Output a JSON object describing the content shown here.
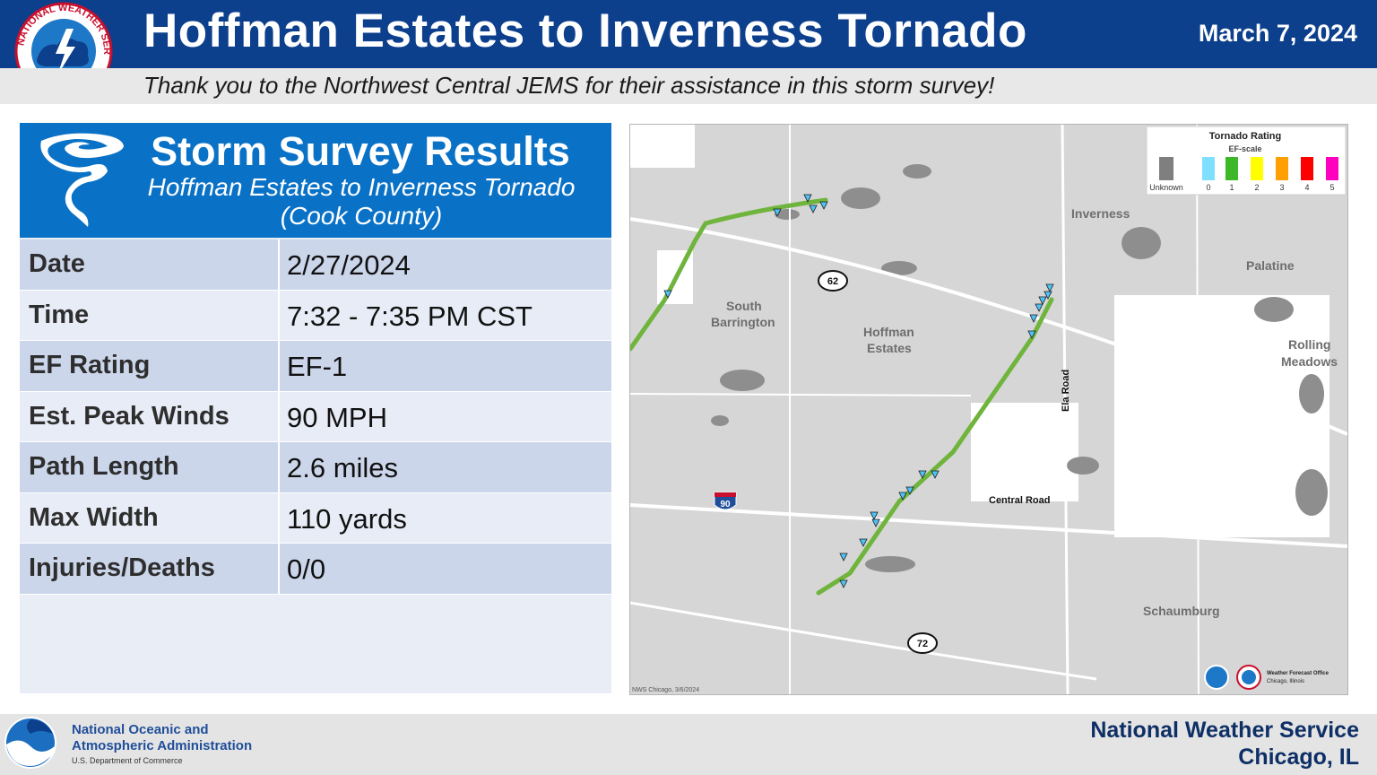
{
  "header": {
    "title": "Hoffman Estates to Inverness Tornado",
    "date": "March 7, 2024",
    "logo_text": "NATIONAL WEATHER SERVICE"
  },
  "thanks": "Thank you to the Northwest Central JEMS for their assistance in this storm survey!",
  "panel": {
    "title": "Storm Survey Results",
    "subtitle_line1": "Hoffman Estates to Inverness Tornado",
    "subtitle_line2": "(Cook County)",
    "icon": "tornado-icon",
    "rows": [
      {
        "label": "Date",
        "value": "2/27/2024"
      },
      {
        "label": "Time",
        "value": "7:32 - 7:35 PM CST"
      },
      {
        "label": "EF Rating",
        "value": "EF-1"
      },
      {
        "label": "Est. Peak Winds",
        "value": "90 MPH"
      },
      {
        "label": "Path Length",
        "value": "2.6 miles"
      },
      {
        "label": "Max Width",
        "value": "110 yards"
      },
      {
        "label": "Injuries/Deaths",
        "value": "0/0"
      }
    ]
  },
  "map": {
    "legend": {
      "title": "Tornado Rating",
      "subtitle": "EF-scale",
      "items": [
        {
          "label": "Unknown",
          "color": "#7f7f7f"
        },
        {
          "label": "0",
          "color": "#7fdfff"
        },
        {
          "label": "1",
          "color": "#3cb828"
        },
        {
          "label": "2",
          "color": "#ffff00"
        },
        {
          "label": "3",
          "color": "#ff9f00"
        },
        {
          "label": "4",
          "color": "#ff0000"
        },
        {
          "label": "5",
          "color": "#ff00bf"
        }
      ]
    },
    "places": {
      "inverness": "Inverness",
      "palatine": "Palatine",
      "south": "South",
      "barrington": "Barrington",
      "hoffman": "Hoffman",
      "estates": "Estates",
      "rolling": "Rolling",
      "meadows": "Meadows",
      "schaumburg": "Schaumburg",
      "central_road": "Central Road",
      "ela_road": "Ela Road"
    },
    "shields": {
      "route62": "62",
      "route72": "72",
      "interstate90": "90"
    },
    "credit": "NWS Chicago, 3/6/2024",
    "wfo_line1": "Weather Forecast Office",
    "wfo_line2": "Chicago, Illinois",
    "track_color": "#6fb43c",
    "marker_color": "#4fc3f7"
  },
  "footer": {
    "noaa_line1": "National Oceanic and",
    "noaa_line2": "Atmospheric Administration",
    "noaa_dept": "U.S. Department of Commerce",
    "office_line1": "National Weather Service",
    "office_line2": "Chicago, IL"
  }
}
